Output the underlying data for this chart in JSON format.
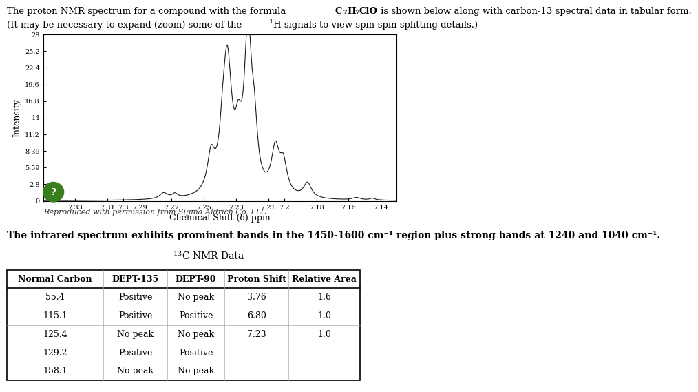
{
  "title_line1a": "The proton NMR spectrum for a compound with the formula ",
  "formula_bold": "C7H7ClO",
  "title_line1b": " is shown below along with carbon-13 spectral data in tabular form.",
  "title_line2a": "(It may be necessary to expand (zoom) some of the ",
  "title_line2b": "H signals to view spin-spin splitting details.)",
  "reproduced": "Reproduced with permission from Sigma-Aldrich Co. LLC",
  "ir_text": "The infrared spectrum exhibits prominent bands in the 1450-1600 cm⁻¹ region plus strong bands at 1240 and 1040 cm⁻¹.",
  "nmr_title": "¹³C NMR Data",
  "table_headers": [
    "Normal Carbon",
    "DEPT-135",
    "DEPT-90",
    "Proton Shift",
    "Relative Area"
  ],
  "table_rows": [
    [
      "55.4",
      "Positive",
      "No peak",
      "3.76",
      "1.6"
    ],
    [
      "115.1",
      "Positive",
      "Positive",
      "6.80",
      "1.0"
    ],
    [
      "125.4",
      "No peak",
      "No peak",
      "7.23",
      "1.0"
    ],
    [
      "129.2",
      "Positive",
      "Positive",
      "",
      ""
    ],
    [
      "158.1",
      "No peak",
      "No peak",
      "",
      ""
    ]
  ],
  "xmin": 7.13,
  "xmax": 7.35,
  "ymin": 0,
  "ymax": 28,
  "yticks": [
    0,
    2.8,
    5.59,
    8.39,
    11.2,
    14,
    16.8,
    19.6,
    22.4,
    25.2,
    28
  ],
  "xticks": [
    7.33,
    7.31,
    7.3,
    7.29,
    7.27,
    7.25,
    7.23,
    7.21,
    7.2,
    7.18,
    7.16,
    7.14
  ],
  "xlabel": "Chemical Shift (δ) ppm",
  "ylabel": "Intensity",
  "line_color": "#1a1a1a",
  "circle_color": "#3a7d1e"
}
